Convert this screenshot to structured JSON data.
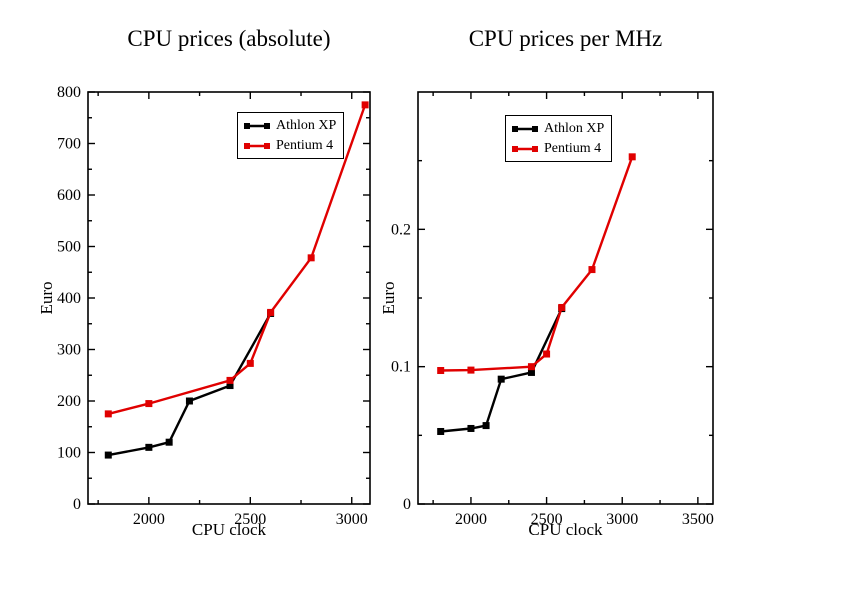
{
  "chart_data": [
    {
      "type": "line",
      "title": "CPU prices (absolute)",
      "xlabel": "CPU clock",
      "ylabel": "Euro",
      "xlim": [
        1700,
        3090
      ],
      "ylim": [
        0,
        800
      ],
      "x_major_ticks": [
        2000,
        2500,
        3000
      ],
      "x_tick_labels": [
        "2000",
        "2500",
        "3000"
      ],
      "x_minor_ticks": [
        1750,
        2250,
        2750
      ],
      "y_major_ticks": [
        0,
        100,
        200,
        300,
        400,
        500,
        600,
        700,
        800
      ],
      "y_tick_labels": [
        "0",
        "100",
        "200",
        "300",
        "400",
        "500",
        "600",
        "700",
        "800"
      ],
      "y_minor_ticks": [
        50,
        150,
        250,
        350,
        450,
        550,
        650,
        750
      ],
      "grid": false,
      "legend_position": "top-center",
      "series": [
        {
          "name": "Athlon XP",
          "color": "#000000",
          "x": [
            1800,
            2000,
            2100,
            2200,
            2400,
            2600
          ],
          "y": [
            95,
            110,
            120,
            200,
            230,
            370
          ]
        },
        {
          "name": "Pentium 4",
          "color": "#e00000",
          "x": [
            1800,
            2000,
            2400,
            2500,
            2600,
            2800,
            3066
          ],
          "y": [
            175,
            195,
            240,
            273,
            372,
            478,
            775
          ]
        }
      ]
    },
    {
      "type": "line",
      "title": "CPU prices per MHz",
      "xlabel": "CPU clock",
      "ylabel": "Euro",
      "xlim": [
        1650,
        3600
      ],
      "ylim": [
        0,
        0.3
      ],
      "x_major_ticks": [
        2000,
        2500,
        3000,
        3500
      ],
      "x_tick_labels": [
        "2000",
        "2500",
        "3000",
        "3500"
      ],
      "x_minor_ticks": [
        1750,
        2250,
        2750,
        3250
      ],
      "y_major_ticks": [
        0,
        0.1,
        0.2
      ],
      "y_tick_labels": [
        "0",
        "0.1",
        "0.2"
      ],
      "y_minor_ticks": [
        0.05,
        0.15,
        0.25
      ],
      "grid": false,
      "legend_position": "top-center",
      "series": [
        {
          "name": "Athlon XP",
          "color": "#000000",
          "x": [
            1800,
            2000,
            2100,
            2200,
            2400,
            2600
          ],
          "y": [
            0.0528,
            0.055,
            0.0571,
            0.0909,
            0.0958,
            0.1423
          ]
        },
        {
          "name": "Pentium 4",
          "color": "#e00000",
          "x": [
            1800,
            2000,
            2400,
            2500,
            2600,
            2800,
            3066
          ],
          "y": [
            0.0972,
            0.0975,
            0.1,
            0.1092,
            0.1431,
            0.1707,
            0.2528
          ]
        }
      ]
    }
  ]
}
